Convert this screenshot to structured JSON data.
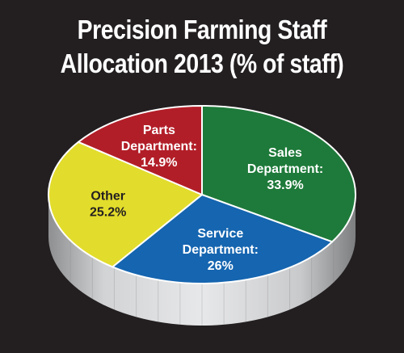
{
  "chart_data": {
    "type": "pie",
    "title_lines": [
      "Precision Farming Staff",
      "Allocation 2013 (% of staff)"
    ],
    "slices": [
      {
        "label_lines": [
          "Sales",
          "Department:"
        ],
        "value": 33.9,
        "value_label": "33.9%",
        "color": "#1e7a3a",
        "text_color": "#ffffff"
      },
      {
        "label_lines": [
          "Service",
          "Department:"
        ],
        "value": 26.0,
        "value_label": "26%",
        "color": "#1565b0",
        "text_color": "#ffffff"
      },
      {
        "label_lines": [
          "Other"
        ],
        "value": 25.2,
        "value_label": "25.2%",
        "color": "#e2dc2c",
        "text_color": "#231f20"
      },
      {
        "label_lines": [
          "Parts",
          "Department:"
        ],
        "value": 14.9,
        "value_label": "14.9%",
        "color": "#b21e28",
        "text_color": "#ffffff"
      }
    ],
    "legend": "none",
    "style": "3d-pie"
  }
}
